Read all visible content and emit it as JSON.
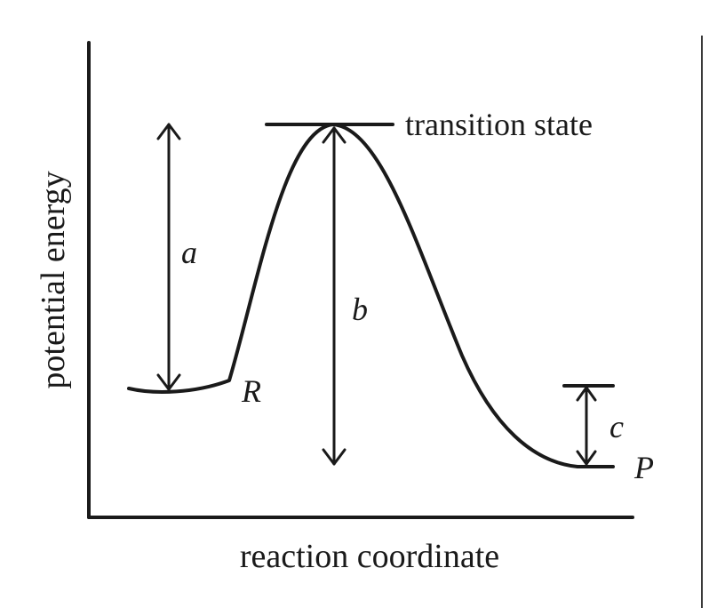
{
  "diagram": {
    "y_axis_label": "potential energy",
    "x_axis_label": "reaction coordinate",
    "transition_state_label": "transition state",
    "reactant_label": "R",
    "product_label": "P",
    "arrow_a_label": "a",
    "arrow_b_label": "b",
    "arrow_c_label": "c"
  }
}
